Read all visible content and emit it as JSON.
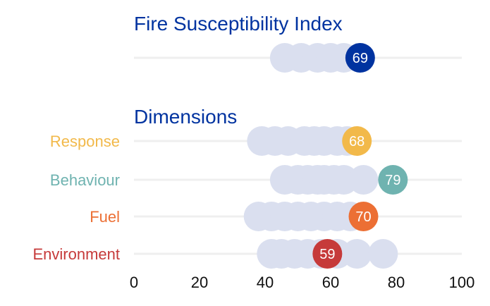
{
  "chart_data": {
    "type": "scatter",
    "title": "Fire Susceptibility Index",
    "subtitle": "Dimensions",
    "xlim": [
      0,
      100
    ],
    "xticks": [
      0,
      20,
      40,
      60,
      80,
      100
    ],
    "grid": true,
    "index": {
      "name": "Fire Susceptibility Index",
      "value": 69,
      "color": "#0033a0",
      "others": [
        46,
        51,
        56,
        60,
        64
      ]
    },
    "series": [
      {
        "name": "Response",
        "value": 68,
        "color": "#f2b94a",
        "others": [
          39,
          43,
          47,
          52,
          55,
          58,
          62,
          65
        ]
      },
      {
        "name": "Behaviour",
        "value": 79,
        "color": "#6fb3b0",
        "others": [
          46,
          50,
          53,
          56,
          58,
          61,
          64,
          70
        ]
      },
      {
        "name": "Fuel",
        "value": 70,
        "color": "#ec6f34",
        "others": [
          38,
          42,
          46,
          50,
          54,
          58,
          62,
          66
        ]
      },
      {
        "name": "Environment",
        "value": 59,
        "color": "#c63a3a",
        "others": [
          42,
          45,
          49,
          53,
          57,
          62,
          68,
          76
        ]
      }
    ],
    "other_color": "#dadfef",
    "title_color": "#0033a0"
  }
}
